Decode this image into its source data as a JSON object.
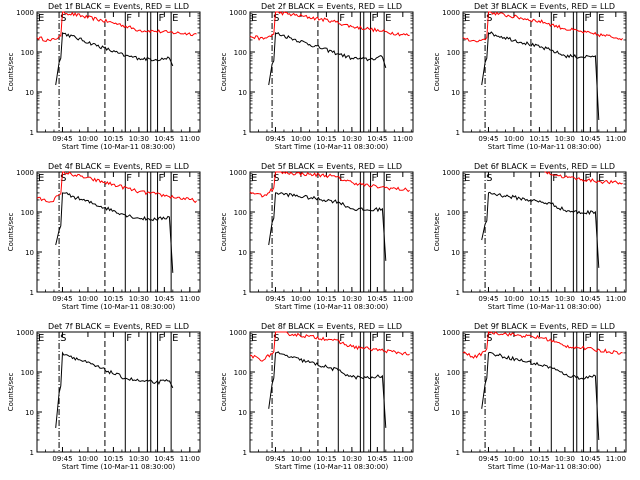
{
  "chart_data": {
    "type": "line",
    "grid": "3x3",
    "y_scale": "log",
    "ylim": [
      1,
      1000
    ],
    "xlim": [
      "09:30",
      "11:06"
    ],
    "ylabel": "Counts/sec",
    "xlabel": "Start Time (10-Mar-11 08:30:00)",
    "x_ticks": [
      "09:45",
      "10:00",
      "10:15",
      "10:30",
      "10:45",
      "11:00"
    ],
    "y_ticks": [
      "1",
      "10",
      "100",
      "1000"
    ],
    "series_names": [
      "Events",
      "LLD"
    ],
    "colors": {
      "events": "#000000",
      "lld": "#ff0000",
      "background": "#ffffff"
    },
    "mode_markers": [
      {
        "label": "E",
        "time": "09:30",
        "style": "solid"
      },
      {
        "label": "S",
        "time": "09:43",
        "style": "dashdot"
      },
      {
        "label": "",
        "time": "10:10",
        "style": "dashed"
      },
      {
        "label": "F",
        "time": "10:22",
        "style": "solid"
      },
      {
        "label": "",
        "time": "10:35",
        "style": "solid"
      },
      {
        "label": "",
        "time": "10:37",
        "style": "solid"
      },
      {
        "label": "F",
        "time": "10:41",
        "style": "solid"
      },
      {
        "label": "E",
        "time": "10:49",
        "style": "solid"
      }
    ],
    "panels": [
      {
        "title": "Det 1f BLACK = Events, RED = LLD",
        "events": [
          {
            "x": "09:41",
            "y": 15
          },
          {
            "x": "09:43",
            "y": 55
          },
          {
            "x": "09:44",
            "y": 70
          },
          {
            "x": "09:45",
            "y": 300
          },
          {
            "x": "10:22",
            "y": 80
          },
          {
            "x": "10:30",
            "y": 70
          },
          {
            "x": "10:40",
            "y": 65
          },
          {
            "x": "10:48",
            "y": 70
          },
          {
            "x": "10:50",
            "y": 45
          }
        ],
        "lld": [
          {
            "x": "09:30",
            "y": 230
          },
          {
            "x": "09:38",
            "y": 190
          },
          {
            "x": "09:44",
            "y": 250
          },
          {
            "x": "09:45",
            "y": 1000
          },
          {
            "x": "10:18",
            "y": 500
          },
          {
            "x": "10:30",
            "y": 350
          },
          {
            "x": "10:40",
            "y": 330
          },
          {
            "x": "10:47",
            "y": 310
          },
          {
            "x": "11:04",
            "y": 280
          }
        ]
      },
      {
        "title": "Det 2f BLACK = Events, RED = LLD",
        "events": [
          {
            "x": "09:41",
            "y": 15
          },
          {
            "x": "09:43",
            "y": 50
          },
          {
            "x": "09:44",
            "y": 60
          },
          {
            "x": "09:45",
            "y": 300
          },
          {
            "x": "10:22",
            "y": 90
          },
          {
            "x": "10:30",
            "y": 70
          },
          {
            "x": "10:40",
            "y": 65
          },
          {
            "x": "10:48",
            "y": 75
          },
          {
            "x": "10:50",
            "y": 40
          }
        ],
        "lld": [
          {
            "x": "09:30",
            "y": 250
          },
          {
            "x": "09:38",
            "y": 210
          },
          {
            "x": "09:44",
            "y": 280
          },
          {
            "x": "09:45",
            "y": 1000
          },
          {
            "x": "10:18",
            "y": 600
          },
          {
            "x": "10:30",
            "y": 430
          },
          {
            "x": "10:40",
            "y": 380
          },
          {
            "x": "10:47",
            "y": 330
          },
          {
            "x": "11:04",
            "y": 260
          }
        ]
      },
      {
        "title": "Det 3f BLACK = Events, RED = LLD",
        "events": [
          {
            "x": "09:41",
            "y": 15
          },
          {
            "x": "09:43",
            "y": 55
          },
          {
            "x": "09:44",
            "y": 70
          },
          {
            "x": "09:45",
            "y": 300
          },
          {
            "x": "10:22",
            "y": 110
          },
          {
            "x": "10:30",
            "y": 80
          },
          {
            "x": "10:40",
            "y": 75
          },
          {
            "x": "10:48",
            "y": 80
          },
          {
            "x": "10:50",
            "y": 2
          }
        ],
        "lld": [
          {
            "x": "09:30",
            "y": 230
          },
          {
            "x": "09:38",
            "y": 180
          },
          {
            "x": "09:44",
            "y": 230
          },
          {
            "x": "09:45",
            "y": 1000
          },
          {
            "x": "10:18",
            "y": 550
          },
          {
            "x": "10:30",
            "y": 380
          },
          {
            "x": "10:40",
            "y": 320
          },
          {
            "x": "10:47",
            "y": 280
          },
          {
            "x": "11:04",
            "y": 220
          }
        ]
      },
      {
        "title": "Det 4f BLACK = Events, RED = LLD",
        "events": [
          {
            "x": "09:41",
            "y": 15
          },
          {
            "x": "09:43",
            "y": 35
          },
          {
            "x": "09:44",
            "y": 45
          },
          {
            "x": "09:45",
            "y": 300
          },
          {
            "x": "10:22",
            "y": 85
          },
          {
            "x": "10:30",
            "y": 70
          },
          {
            "x": "10:40",
            "y": 65
          },
          {
            "x": "10:48",
            "y": 75
          },
          {
            "x": "10:50",
            "y": 3
          }
        ],
        "lld": [
          {
            "x": "09:30",
            "y": 220
          },
          {
            "x": "09:38",
            "y": 180
          },
          {
            "x": "09:44",
            "y": 280
          },
          {
            "x": "09:45",
            "y": 1000
          },
          {
            "x": "10:18",
            "y": 450
          },
          {
            "x": "10:30",
            "y": 320
          },
          {
            "x": "10:40",
            "y": 280
          },
          {
            "x": "10:47",
            "y": 250
          },
          {
            "x": "11:04",
            "y": 190
          }
        ]
      },
      {
        "title": "Det 5f BLACK = Events, RED = LLD",
        "events": [
          {
            "x": "09:41",
            "y": 15
          },
          {
            "x": "09:43",
            "y": 55
          },
          {
            "x": "09:44",
            "y": 70
          },
          {
            "x": "09:45",
            "y": 300
          },
          {
            "x": "10:22",
            "y": 180
          },
          {
            "x": "10:30",
            "y": 120
          },
          {
            "x": "10:40",
            "y": 110
          },
          {
            "x": "10:48",
            "y": 120
          },
          {
            "x": "10:50",
            "y": 6
          }
        ],
        "lld": [
          {
            "x": "09:30",
            "y": 320
          },
          {
            "x": "09:38",
            "y": 250
          },
          {
            "x": "09:44",
            "y": 400
          },
          {
            "x": "09:45",
            "y": 1000
          },
          {
            "x": "10:18",
            "y": 800
          },
          {
            "x": "10:30",
            "y": 550
          },
          {
            "x": "10:40",
            "y": 450
          },
          {
            "x": "10:47",
            "y": 420
          },
          {
            "x": "11:04",
            "y": 350
          }
        ]
      },
      {
        "title": "Det 6f BLACK = Events, RED = LLD",
        "events": [
          {
            "x": "09:41",
            "y": 20
          },
          {
            "x": "09:43",
            "y": 50
          },
          {
            "x": "09:44",
            "y": 60
          },
          {
            "x": "09:45",
            "y": 300
          },
          {
            "x": "10:22",
            "y": 160
          },
          {
            "x": "10:30",
            "y": 110
          },
          {
            "x": "10:40",
            "y": 95
          },
          {
            "x": "10:48",
            "y": 100
          },
          {
            "x": "10:50",
            "y": 4
          }
        ],
        "lld": [
          {
            "x": "10:18",
            "y": 1000
          },
          {
            "x": "10:30",
            "y": 750
          },
          {
            "x": "10:40",
            "y": 650
          },
          {
            "x": "10:47",
            "y": 600
          },
          {
            "x": "11:04",
            "y": 520
          }
        ]
      },
      {
        "title": "Det 7f BLACK = Events, RED = LLD",
        "events": [
          {
            "x": "09:41",
            "y": 4
          },
          {
            "x": "09:43",
            "y": 30
          },
          {
            "x": "09:44",
            "y": 45
          },
          {
            "x": "09:45",
            "y": 300
          },
          {
            "x": "10:22",
            "y": 70
          },
          {
            "x": "10:30",
            "y": 60
          },
          {
            "x": "10:40",
            "y": 55
          },
          {
            "x": "10:48",
            "y": 60
          },
          {
            "x": "10:50",
            "y": 40
          }
        ],
        "lld": []
      },
      {
        "title": "Det 8f BLACK = Events, RED = LLD",
        "events": [
          {
            "x": "09:41",
            "y": 12
          },
          {
            "x": "09:43",
            "y": 50
          },
          {
            "x": "09:44",
            "y": 70
          },
          {
            "x": "09:45",
            "y": 300
          },
          {
            "x": "10:22",
            "y": 110
          },
          {
            "x": "10:30",
            "y": 75
          },
          {
            "x": "10:40",
            "y": 70
          },
          {
            "x": "10:48",
            "y": 80
          },
          {
            "x": "10:50",
            "y": 4
          }
        ],
        "lld": [
          {
            "x": "09:30",
            "y": 260
          },
          {
            "x": "09:38",
            "y": 200
          },
          {
            "x": "09:44",
            "y": 320
          },
          {
            "x": "09:45",
            "y": 1000
          },
          {
            "x": "10:18",
            "y": 650
          },
          {
            "x": "10:30",
            "y": 430
          },
          {
            "x": "10:40",
            "y": 380
          },
          {
            "x": "10:47",
            "y": 350
          },
          {
            "x": "11:04",
            "y": 280
          }
        ]
      },
      {
        "title": "Det 9f BLACK = Events, RED = LLD",
        "events": [
          {
            "x": "09:41",
            "y": 12
          },
          {
            "x": "09:43",
            "y": 50
          },
          {
            "x": "09:44",
            "y": 70
          },
          {
            "x": "09:45",
            "y": 300
          },
          {
            "x": "10:22",
            "y": 130
          },
          {
            "x": "10:30",
            "y": 85
          },
          {
            "x": "10:40",
            "y": 70
          },
          {
            "x": "10:48",
            "y": 80
          },
          {
            "x": "10:50",
            "y": 2
          }
        ],
        "lld": [
          {
            "x": "09:30",
            "y": 300
          },
          {
            "x": "09:38",
            "y": 230
          },
          {
            "x": "09:44",
            "y": 380
          },
          {
            "x": "09:45",
            "y": 1000
          },
          {
            "x": "10:18",
            "y": 700
          },
          {
            "x": "10:30",
            "y": 450
          },
          {
            "x": "10:40",
            "y": 400
          },
          {
            "x": "10:47",
            "y": 360
          },
          {
            "x": "11:04",
            "y": 300
          }
        ]
      }
    ]
  }
}
